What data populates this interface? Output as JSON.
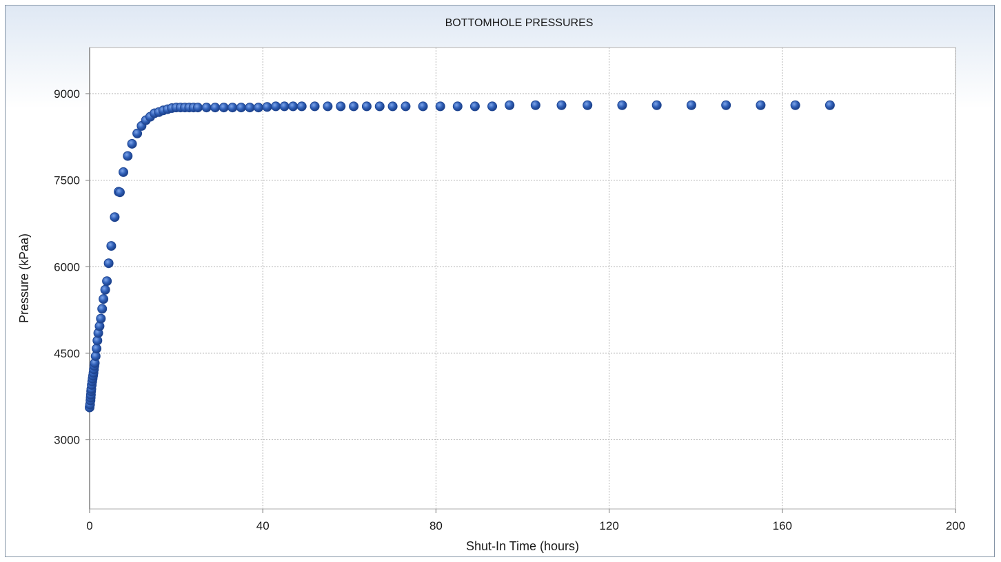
{
  "chart_data": {
    "type": "scatter",
    "title": "BOTTOMHOLE PRESSURES",
    "xlabel": "Shut-In Time (hours)",
    "ylabel": "Pressure (kPaa)",
    "xlim": [
      0,
      200
    ],
    "ylim": [
      1800,
      9800
    ],
    "xticks": [
      0,
      40,
      80,
      120,
      160,
      200
    ],
    "yticks": [
      3000,
      4500,
      6000,
      7500,
      9000
    ],
    "grid": true,
    "legend": "none",
    "marker_color": "#2f5fb7",
    "series": [
      {
        "points": [
          [
            0.0,
            3560
          ],
          [
            0.1,
            3610
          ],
          [
            0.2,
            3680
          ],
          [
            0.25,
            3730
          ],
          [
            0.3,
            3780
          ],
          [
            0.35,
            3840
          ],
          [
            0.4,
            3880
          ],
          [
            0.5,
            3950
          ],
          [
            0.6,
            4010
          ],
          [
            0.7,
            4060
          ],
          [
            0.8,
            4110
          ],
          [
            0.9,
            4160
          ],
          [
            1.0,
            4220
          ],
          [
            1.1,
            4280
          ],
          [
            1.2,
            4330
          ],
          [
            1.4,
            4450
          ],
          [
            1.6,
            4580
          ],
          [
            1.8,
            4720
          ],
          [
            2.0,
            4850
          ],
          [
            2.3,
            4970
          ],
          [
            2.6,
            5100
          ],
          [
            2.9,
            5270
          ],
          [
            3.2,
            5440
          ],
          [
            3.6,
            5600
          ],
          [
            4.0,
            5750
          ],
          [
            4.4,
            6060
          ],
          [
            5.0,
            6360
          ],
          [
            5.8,
            6860
          ],
          [
            6.7,
            7300
          ],
          [
            7.0,
            7290
          ],
          [
            7.8,
            7640
          ],
          [
            8.8,
            7920
          ],
          [
            9.8,
            8130
          ],
          [
            11.0,
            8310
          ],
          [
            12.0,
            8440
          ],
          [
            13.0,
            8540
          ],
          [
            14.0,
            8600
          ],
          [
            15.0,
            8660
          ],
          [
            16.0,
            8680
          ],
          [
            17.0,
            8710
          ],
          [
            18.0,
            8730
          ],
          [
            19.0,
            8750
          ],
          [
            20.0,
            8760
          ],
          [
            21.0,
            8760
          ],
          [
            22.0,
            8760
          ],
          [
            23.0,
            8760
          ],
          [
            24.0,
            8760
          ],
          [
            25.0,
            8760
          ],
          [
            27.0,
            8760
          ],
          [
            29.0,
            8760
          ],
          [
            31.0,
            8760
          ],
          [
            33.0,
            8760
          ],
          [
            35.0,
            8760
          ],
          [
            37.0,
            8760
          ],
          [
            39.0,
            8760
          ],
          [
            41.0,
            8770
          ],
          [
            43.0,
            8780
          ],
          [
            45.0,
            8780
          ],
          [
            47.0,
            8780
          ],
          [
            49.0,
            8780
          ],
          [
            52.0,
            8780
          ],
          [
            55.0,
            8780
          ],
          [
            58.0,
            8780
          ],
          [
            61.0,
            8780
          ],
          [
            64.0,
            8780
          ],
          [
            67.0,
            8780
          ],
          [
            70.0,
            8780
          ],
          [
            73.0,
            8780
          ],
          [
            77.0,
            8780
          ],
          [
            81.0,
            8780
          ],
          [
            85.0,
            8780
          ],
          [
            89.0,
            8780
          ],
          [
            93.0,
            8780
          ],
          [
            97.0,
            8800
          ],
          [
            103.0,
            8800
          ],
          [
            109.0,
            8800
          ],
          [
            115.0,
            8800
          ],
          [
            123.0,
            8800
          ],
          [
            131.0,
            8800
          ],
          [
            139.0,
            8800
          ],
          [
            147.0,
            8800
          ],
          [
            155.0,
            8800
          ],
          [
            163.0,
            8800
          ],
          [
            171.0,
            8800
          ]
        ]
      }
    ]
  }
}
